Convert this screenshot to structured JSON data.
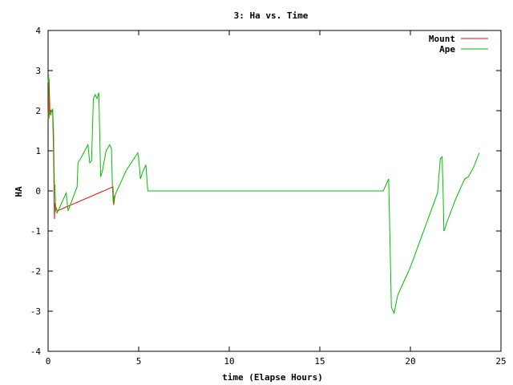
{
  "chart_data": {
    "type": "line",
    "title": "3: Ha vs. Time",
    "xlabel": "time (Elapse Hours)",
    "ylabel": "HA",
    "xlim": [
      0,
      25
    ],
    "ylim": [
      -4,
      4
    ],
    "x_ticks": [
      0,
      5,
      10,
      15,
      20,
      25
    ],
    "y_ticks": [
      -4,
      -3,
      -2,
      -1,
      0,
      1,
      2,
      3,
      4
    ],
    "grid": false,
    "legend_position": "top-right",
    "series": [
      {
        "name": "Mount",
        "color": "#ff0000",
        "x": [
          0.0,
          0.05,
          0.1,
          0.25,
          0.3,
          0.33,
          0.35,
          0.38,
          0.42,
          0.5,
          3.58,
          3.62,
          3.66,
          3.7
        ],
        "y": [
          1.8,
          2.8,
          1.95,
          2.0,
          1.0,
          0.0,
          -0.7,
          -0.3,
          -0.4,
          -0.5,
          0.1,
          -0.35,
          -0.2,
          -0.1
        ]
      },
      {
        "name": "Ape",
        "color": "#00c000",
        "x": [
          0.0,
          0.03,
          0.05,
          0.07,
          0.1,
          0.15,
          0.2,
          0.25,
          0.3,
          0.35,
          0.38,
          0.42,
          0.5,
          0.6,
          1.0,
          1.1,
          1.6,
          1.65,
          1.85,
          2.2,
          2.3,
          2.4,
          2.5,
          2.6,
          2.7,
          2.8,
          2.9,
          3.0,
          3.2,
          3.4,
          3.5,
          3.55,
          3.6,
          3.65,
          4.3,
          4.95,
          5.0,
          5.1,
          5.2,
          5.3,
          5.4,
          5.5,
          10.0,
          15.0,
          18.5,
          18.7,
          18.8,
          18.95,
          19.1,
          19.3,
          20.0,
          21.5,
          21.65,
          21.75,
          21.8,
          21.85,
          21.9,
          22.0,
          22.5,
          23.0,
          23.2,
          23.5,
          23.8
        ],
        "y": [
          2.7,
          2.9,
          1.8,
          1.9,
          1.95,
          1.9,
          2.0,
          2.05,
          1.5,
          0.1,
          0.15,
          -0.5,
          -0.55,
          -0.45,
          -0.05,
          -0.5,
          0.1,
          0.7,
          0.85,
          1.15,
          0.7,
          0.75,
          2.3,
          2.4,
          2.3,
          2.45,
          0.35,
          0.5,
          1.0,
          1.15,
          1.05,
          0.1,
          -0.3,
          -0.15,
          0.5,
          0.95,
          0.8,
          0.3,
          0.45,
          0.55,
          0.65,
          0.0,
          0.0,
          0.0,
          0.0,
          0.2,
          0.3,
          -2.9,
          -3.05,
          -2.6,
          -1.9,
          -0.05,
          0.8,
          0.85,
          0.1,
          -1.0,
          -0.95,
          -0.8,
          -0.2,
          0.3,
          0.35,
          0.6,
          0.95
        ]
      }
    ]
  }
}
